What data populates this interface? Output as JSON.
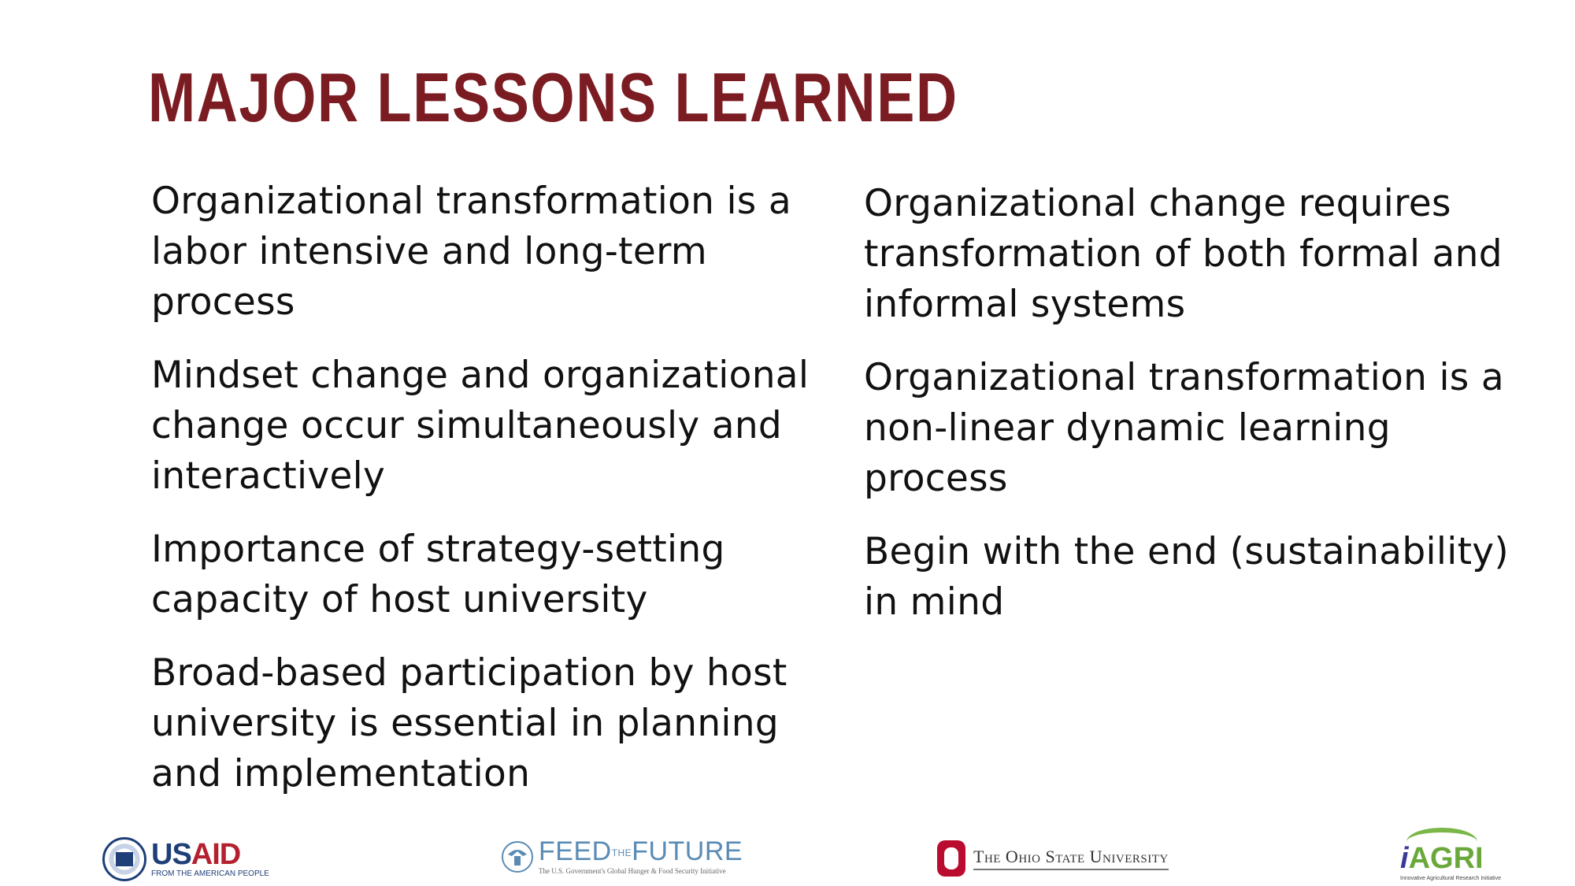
{
  "slide": {
    "title": "MAJOR LESSONS LEARNED",
    "title_color": "#7b1c23",
    "left_lessons": [
      "Organizational transformation is a labor intensive and long-term process",
      "Mindset change and organizational change occur simultaneously and interactively",
      "Importance of strategy-setting capacity of host university",
      "Broad-based participation by host university is essential in planning and implementation"
    ],
    "right_lessons": [
      "Organizational change requires transformation of both formal and informal systems",
      "Organizational transformation is a non-linear dynamic learning process",
      "Begin with the end (sustainability) in mind"
    ]
  },
  "footer": {
    "usaid": {
      "name_us": "US",
      "name_aid": "AID",
      "tagline": "FROM THE AMERICAN PEOPLE",
      "icon": "usaid-seal-icon",
      "color": "#1f3f79"
    },
    "feed_the_future": {
      "name_feed": "FEED",
      "name_the": "THE",
      "name_future": "FUTURE",
      "tagline": "The U.S. Government's Global Hunger & Food Security Initiative",
      "icon": "us-seal-icon",
      "color": "#5a8bb4"
    },
    "ohio_state": {
      "name": "The Ohio State University",
      "icon": "block-o-icon",
      "color": "#ba0c2f"
    },
    "iagri": {
      "name_i": "i",
      "name_agri": "AGRI",
      "tagline": "Innovative Agricultural Research Initiative",
      "icon": "iagri-arc-icon",
      "color": "#6aa83b"
    }
  }
}
